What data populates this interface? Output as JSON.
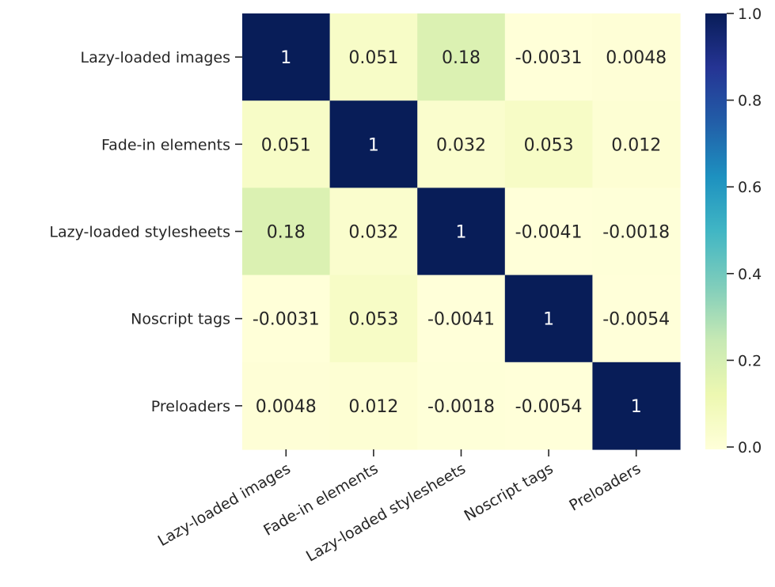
{
  "chart_data": {
    "type": "heatmap",
    "title": "",
    "xlabel": "",
    "ylabel": "",
    "rows": [
      "Lazy-loaded images",
      "Fade-in elements",
      "Lazy-loaded stylesheets",
      "Noscript tags",
      "Preloaders"
    ],
    "columns": [
      "Lazy-loaded images",
      "Fade-in elements",
      "Lazy-loaded stylesheets",
      "Noscript tags",
      "Preloaders"
    ],
    "values": [
      [
        1,
        0.051,
        0.18,
        -0.0031,
        0.0048
      ],
      [
        0.051,
        1,
        0.032,
        0.053,
        0.012
      ],
      [
        0.18,
        0.032,
        1,
        -0.0041,
        -0.0018
      ],
      [
        -0.0031,
        0.053,
        -0.0041,
        1,
        -0.0054
      ],
      [
        0.0048,
        0.012,
        -0.0018,
        -0.0054,
        1
      ]
    ],
    "value_labels": [
      [
        "1",
        "0.051",
        "0.18",
        "-0.0031",
        "0.0048"
      ],
      [
        "0.051",
        "1",
        "0.032",
        "0.053",
        "0.012"
      ],
      [
        "0.18",
        "0.032",
        "1",
        "-0.0041",
        "-0.0018"
      ],
      [
        "-0.0031",
        "0.053",
        "-0.0041",
        "1",
        "-0.0054"
      ],
      [
        "0.0048",
        "0.012",
        "-0.0018",
        "-0.0054",
        "1"
      ]
    ],
    "colormap": "YlGnBu",
    "colorbar": {
      "range": [
        -0.0054,
        1
      ],
      "ticks": [
        0.0,
        0.2,
        0.4,
        0.6,
        0.8,
        1.0
      ],
      "tick_labels": [
        "0.0",
        "0.2",
        "0.4",
        "0.6",
        "0.8",
        "1.0"
      ]
    },
    "grid": false,
    "legend": "colorbar-right"
  }
}
